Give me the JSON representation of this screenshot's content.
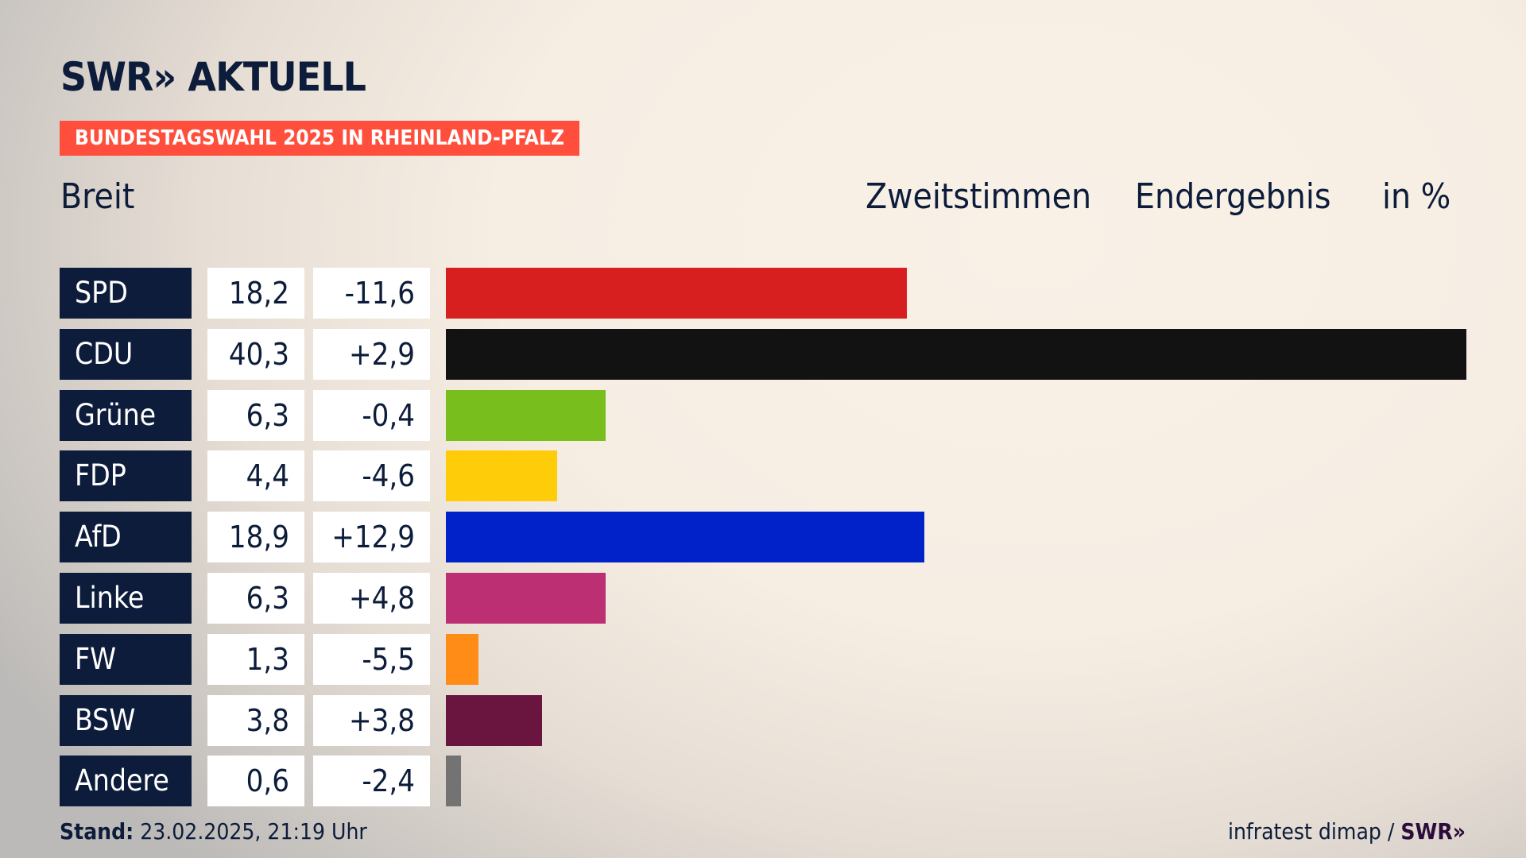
{
  "header": {
    "logo": "SWR» AKTUELL",
    "banner": "BUNDESTAGSWAHL 2025 IN RHEINLAND-PFALZ",
    "subtitle": "Breit",
    "labels": [
      "Zweitstimmen",
      "Endergebnis",
      "in %"
    ]
  },
  "chart_data": {
    "type": "bar",
    "title": "Bundestagswahl 2025 in Rheinland-Pfalz – Breit",
    "xlabel": "",
    "ylabel": "in %",
    "xlim": [
      0,
      40.3
    ],
    "categories": [
      "SPD",
      "CDU",
      "Grüne",
      "FDP",
      "AfD",
      "Linke",
      "FW",
      "BSW",
      "Andere"
    ],
    "values": [
      18.2,
      40.3,
      6.3,
      4.4,
      18.9,
      6.3,
      1.3,
      3.8,
      0.6
    ],
    "value_labels": [
      "18,2",
      "40,3",
      "6,3",
      "4,4",
      "18,9",
      "6,3",
      "1,3",
      "3,8",
      "0,6"
    ],
    "diff_labels": [
      "-11,6",
      "+2,9",
      "-0,4",
      "-4,6",
      "+12,9",
      "+4,8",
      "-5,5",
      "+3,8",
      "-2,4"
    ],
    "colors": [
      "#d71f20",
      "#121212",
      "#78be1c",
      "#ffcc0a",
      "#0022c8",
      "#bc2f72",
      "#ff8c16",
      "#6a1440",
      "#737373"
    ]
  },
  "footer": {
    "stand_label": "Stand:",
    "stand_value": "23.02.2025, 21:19 Uhr",
    "source": "infratest dimap /",
    "source_logo": "SWR»"
  }
}
